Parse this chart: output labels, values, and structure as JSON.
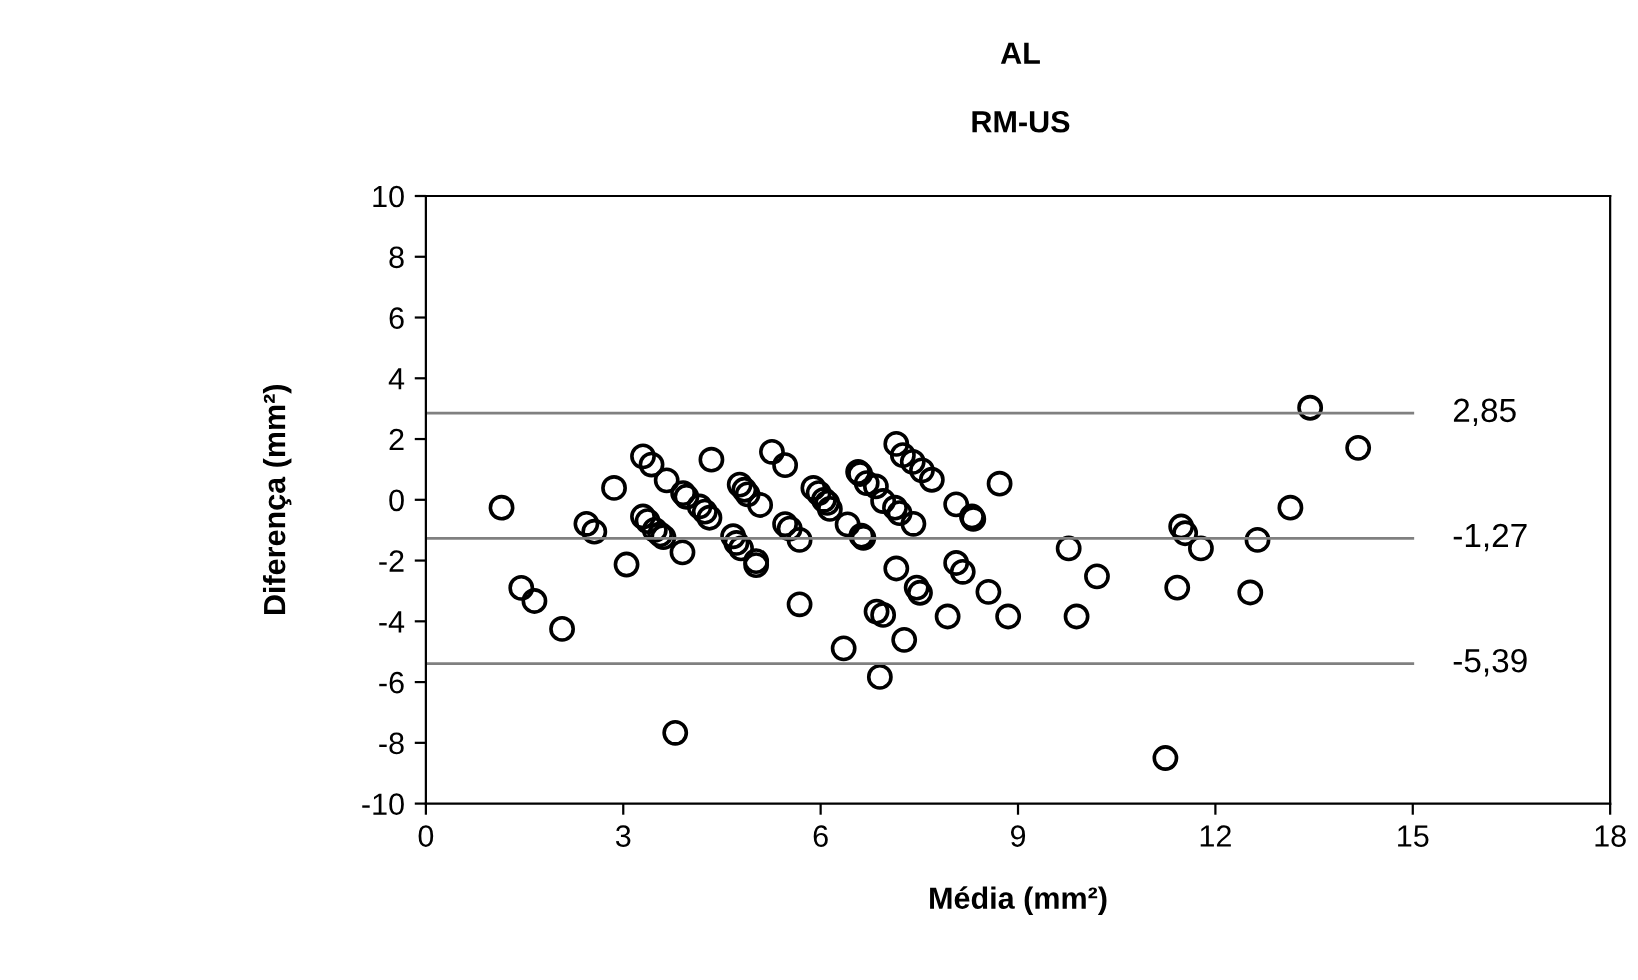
{
  "chart_data": {
    "type": "scatter",
    "title": "AL",
    "subtitle": "RM-US",
    "xlabel": "Média (mm²)",
    "ylabel": "Diferença (mm²)",
    "xlim": [
      0,
      18
    ],
    "xticks": [
      0,
      3,
      6,
      9,
      12,
      15,
      18
    ],
    "ylim": [
      -10,
      10
    ],
    "yticks": [
      -10,
      -8,
      -6,
      -4,
      -2,
      0,
      2,
      4,
      6,
      8,
      10
    ],
    "grid": false,
    "legend": false,
    "marker": "circle",
    "series": [
      {
        "color": "#000000",
        "x": [
          1.15,
          1.45,
          1.65,
          2.07,
          2.44,
          2.56,
          2.86,
          3.05,
          3.3,
          3.43,
          3.66,
          3.91,
          3.96,
          3.3,
          3.37,
          3.48,
          3.56,
          3.61,
          3.9,
          4.16,
          4.24,
          4.31,
          4.34,
          3.79,
          4.67,
          4.72,
          4.79,
          4.77,
          4.84,
          4.89,
          5.08,
          5.02,
          5.02,
          5.26,
          5.46,
          5.46,
          5.53,
          5.68,
          5.68,
          5.89,
          5.97,
          6.05,
          6.1,
          6.14,
          6.35,
          6.41,
          6.62,
          6.65,
          6.9,
          6.57,
          6.6,
          6.7,
          6.84,
          6.95,
          7.13,
          7.2,
          7.41,
          7.15,
          7.25,
          7.4,
          7.54,
          7.69,
          7.15,
          6.85,
          6.95,
          7.27,
          7.46,
          7.51,
          7.93,
          8.06,
          8.16,
          8.06,
          8.3,
          8.32,
          8.55,
          8.85,
          8.72,
          9.77,
          10.2,
          9.89,
          11.48,
          11.54,
          11.42,
          11.24,
          11.78,
          12.64,
          12.53,
          13.14,
          13.44,
          14.17
        ],
        "values": [
          -0.26,
          -2.9,
          -3.33,
          -4.25,
          -0.79,
          -1.05,
          0.39,
          -2.13,
          1.43,
          1.16,
          0.64,
          0.22,
          0.1,
          -0.55,
          -0.7,
          -0.99,
          -1.14,
          -1.23,
          -1.73,
          -0.22,
          -0.39,
          -0.59,
          1.32,
          -7.67,
          -1.2,
          -1.42,
          -1.6,
          0.5,
          0.33,
          0.18,
          -0.17,
          -2.02,
          -2.15,
          1.58,
          1.14,
          -0.8,
          -0.95,
          -1.32,
          -3.44,
          0.39,
          0.22,
          0.0,
          -0.1,
          -0.3,
          -4.89,
          -0.81,
          -1.18,
          -1.25,
          -5.83,
          0.92,
          0.85,
          0.55,
          0.44,
          -0.04,
          -0.26,
          -0.44,
          -0.79,
          1.84,
          1.47,
          1.25,
          0.97,
          0.66,
          -2.26,
          -3.68,
          -3.79,
          -4.61,
          -2.89,
          -3.06,
          -3.84,
          -2.08,
          -2.37,
          -0.15,
          -0.55,
          -0.63,
          -3.03,
          -3.84,
          0.53,
          -1.6,
          -2.52,
          -3.84,
          -0.88,
          -1.1,
          -2.89,
          -8.5,
          -1.6,
          -1.32,
          -3.05,
          -0.26,
          3.03,
          1.71
        ]
      }
    ],
    "ref_lines": [
      {
        "axis": "y",
        "value": 2.85,
        "label": "2,85",
        "color": "#808080"
      },
      {
        "axis": "y",
        "value": -1.27,
        "label": "-1,27",
        "color": "#808080"
      },
      {
        "axis": "y",
        "value": -5.39,
        "label": "-5,39",
        "color": "#808080"
      }
    ]
  }
}
